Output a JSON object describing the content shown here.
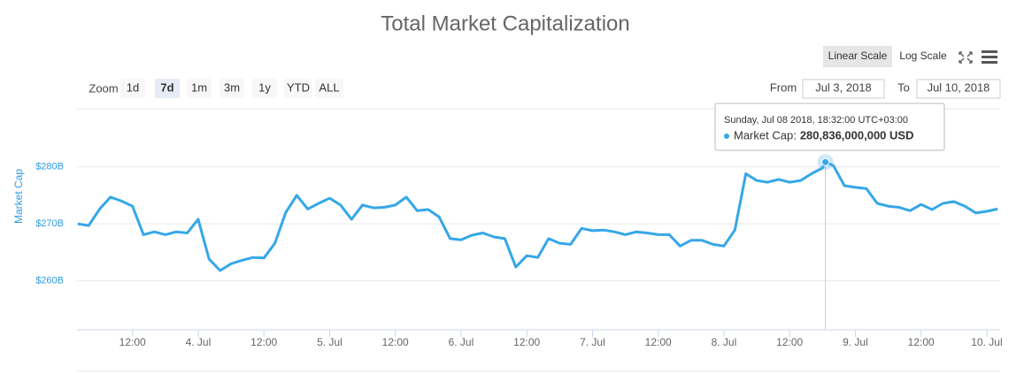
{
  "chart_data": {
    "type": "line",
    "title": "Total Market Capitalization",
    "y_label": "Market Cap",
    "scale_buttons": [
      "Linear Scale",
      "Log Scale"
    ],
    "log_scale": false,
    "zoom_label": "Zoom",
    "zoom_buttons": [
      "1d",
      "7d",
      "1m",
      "3m",
      "1y",
      "YTD",
      "ALL"
    ],
    "zoom_selected": "7d",
    "from_label": "From",
    "from": "Jul 3, 2018",
    "to_label": "To",
    "to": "Jul 10, 2018",
    "xlim": [
      "2018-07-03T01:52",
      "2018-07-10T02:26"
    ],
    "xticks": [
      {
        "value": "2018-07-03T12:00",
        "label": "12:00"
      },
      {
        "value": "2018-07-04T00:00",
        "label": "4. Jul"
      },
      {
        "value": "2018-07-04T12:00",
        "label": "12:00"
      },
      {
        "value": "2018-07-05T00:00",
        "label": "5. Jul"
      },
      {
        "value": "2018-07-05T12:00",
        "label": "12:00"
      },
      {
        "value": "2018-07-06T00:00",
        "label": "6. Jul"
      },
      {
        "value": "2018-07-06T12:00",
        "label": "12:00"
      },
      {
        "value": "2018-07-07T00:00",
        "label": "7. Jul"
      },
      {
        "value": "2018-07-07T12:00",
        "label": "12:00"
      },
      {
        "value": "2018-07-08T00:00",
        "label": "8. Jul"
      },
      {
        "value": "2018-07-08T12:00",
        "label": "12:00"
      },
      {
        "value": "2018-07-09T00:00",
        "label": "9. Jul"
      },
      {
        "value": "2018-07-09T12:00",
        "label": "12:00"
      },
      {
        "value": "2018-07-10T00:00",
        "label": "10. Jul"
      }
    ],
    "ylim": [
      251.4,
      290.2
    ],
    "yticks": [
      {
        "value": 260,
        "label": "$260B"
      },
      {
        "value": 270,
        "label": "$270B"
      },
      {
        "value": 280,
        "label": "$280B"
      }
    ],
    "grid": true,
    "x": [
      "2018-07-03T02:00",
      "2018-07-03T04:00",
      "2018-07-03T06:00",
      "2018-07-03T08:00",
      "2018-07-03T10:00",
      "2018-07-03T12:00",
      "2018-07-03T14:00",
      "2018-07-03T16:00",
      "2018-07-03T18:00",
      "2018-07-03T20:00",
      "2018-07-03T22:00",
      "2018-07-04T00:00",
      "2018-07-04T02:00",
      "2018-07-04T04:00",
      "2018-07-04T06:00",
      "2018-07-04T08:00",
      "2018-07-04T10:00",
      "2018-07-04T12:00",
      "2018-07-04T14:00",
      "2018-07-04T16:00",
      "2018-07-04T18:00",
      "2018-07-04T20:00",
      "2018-07-04T22:00",
      "2018-07-05T00:00",
      "2018-07-05T02:00",
      "2018-07-05T04:00",
      "2018-07-05T06:00",
      "2018-07-05T08:00",
      "2018-07-05T10:00",
      "2018-07-05T12:00",
      "2018-07-05T14:00",
      "2018-07-05T16:00",
      "2018-07-05T18:00",
      "2018-07-05T20:00",
      "2018-07-05T22:00",
      "2018-07-06T00:00",
      "2018-07-06T02:00",
      "2018-07-06T04:00",
      "2018-07-06T06:00",
      "2018-07-06T08:00",
      "2018-07-06T10:00",
      "2018-07-06T12:00",
      "2018-07-06T14:00",
      "2018-07-06T16:00",
      "2018-07-06T18:00",
      "2018-07-06T20:00",
      "2018-07-06T22:00",
      "2018-07-07T00:00",
      "2018-07-07T02:00",
      "2018-07-07T04:00",
      "2018-07-07T06:00",
      "2018-07-07T08:00",
      "2018-07-07T10:00",
      "2018-07-07T12:00",
      "2018-07-07T14:00",
      "2018-07-07T16:00",
      "2018-07-07T18:00",
      "2018-07-07T20:00",
      "2018-07-07T22:00",
      "2018-07-08T00:00",
      "2018-07-08T02:00",
      "2018-07-08T04:00",
      "2018-07-08T06:00",
      "2018-07-08T08:00",
      "2018-07-08T10:00",
      "2018-07-08T12:00",
      "2018-07-08T14:00",
      "2018-07-08T16:00",
      "2018-07-08T18:00",
      "2018-07-08T18:32",
      "2018-07-08T20:00",
      "2018-07-08T22:00",
      "2018-07-09T00:00",
      "2018-07-09T02:00",
      "2018-07-09T04:00",
      "2018-07-09T06:00",
      "2018-07-09T08:00",
      "2018-07-09T10:00",
      "2018-07-09T12:00",
      "2018-07-09T14:00",
      "2018-07-09T16:00",
      "2018-07-09T18:00",
      "2018-07-09T20:00",
      "2018-07-09T22:00",
      "2018-07-10T00:00",
      "2018-07-10T02:00"
    ],
    "series": [
      {
        "color": "#35a7e8",
        "values": [
          270.0,
          269.7,
          272.6,
          274.7,
          274.0,
          273.1,
          268.1,
          268.6,
          268.1,
          268.6,
          268.4,
          270.8,
          263.8,
          261.8,
          263.0,
          263.6,
          264.1,
          264.0,
          266.6,
          272.0,
          275.0,
          272.6,
          273.6,
          274.5,
          273.3,
          270.8,
          273.3,
          272.8,
          272.9,
          273.3,
          274.7,
          272.3,
          272.5,
          271.2,
          267.4,
          267.2,
          268.0,
          268.4,
          267.7,
          267.4,
          262.4,
          264.4,
          264.1,
          267.4,
          266.6,
          266.4,
          269.2,
          268.8,
          268.9,
          268.6,
          268.1,
          268.6,
          268.4,
          268.1,
          268.1,
          266.1,
          267.1,
          267.1,
          266.4,
          266.1,
          268.9,
          278.8,
          277.6,
          277.3,
          277.8,
          277.3,
          277.6,
          278.8,
          279.8,
          280.836,
          280.2,
          276.7,
          276.4,
          276.2,
          273.6,
          273.1,
          272.9,
          272.3,
          273.4,
          272.5,
          273.6,
          273.9,
          273.1,
          271.9,
          272.2,
          272.6
        ]
      }
    ],
    "tooltip": {
      "x": "2018-07-08T18:32",
      "header": "Sunday, Jul 08 2018, 18:32:00 UTC+03:00",
      "label": "Market Cap:",
      "value_label": "280,836,000,000 USD"
    }
  }
}
